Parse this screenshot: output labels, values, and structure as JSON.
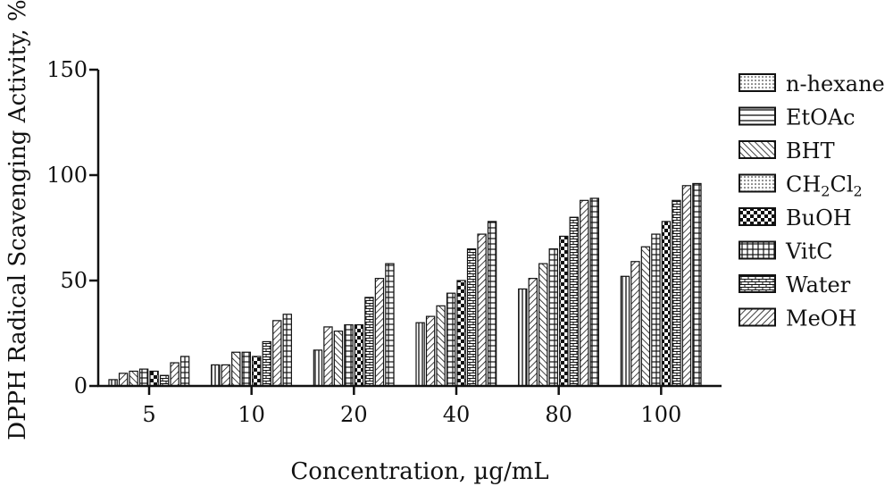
{
  "chart_data": {
    "type": "bar",
    "title": "",
    "xlabel": "Concentration, µg/mL",
    "ylabel": "DPPH Radical Scavenging Activity, %",
    "ylim": [
      0,
      150
    ],
    "yticks": [
      "0",
      "50",
      "100",
      "150"
    ],
    "categories": [
      "5",
      "10",
      "20",
      "40",
      "80",
      "100"
    ],
    "legend_position": "right",
    "grid": false,
    "series": [
      {
        "name": "",
        "pattern": "vlines",
        "values": [
          3,
          10,
          17,
          30,
          46,
          52
        ]
      },
      {
        "name": "",
        "pattern": "diag-right",
        "values": [
          6,
          10,
          28,
          33,
          51,
          59
        ]
      },
      {
        "name": "",
        "pattern": "diag-left",
        "values": [
          7,
          16,
          26,
          38,
          58,
          66
        ]
      },
      {
        "name": "",
        "pattern": "grid",
        "values": [
          8,
          16,
          29,
          44,
          65,
          72
        ]
      },
      {
        "name": "",
        "pattern": "check",
        "values": [
          7,
          14,
          29,
          50,
          71,
          78
        ]
      },
      {
        "name": "",
        "pattern": "brick",
        "values": [
          5,
          21,
          42,
          65,
          80,
          88
        ]
      },
      {
        "name": "",
        "pattern": "diag-right",
        "values": [
          11,
          31,
          51,
          72,
          88,
          95
        ]
      },
      {
        "name": "",
        "pattern": "grid",
        "values": [
          14,
          34,
          58,
          78,
          89,
          96
        ]
      }
    ],
    "legend": [
      {
        "label": "n-hexane",
        "pattern": "dots"
      },
      {
        "label": "EtOAc",
        "pattern": "hlines"
      },
      {
        "label": "BHT",
        "pattern": "diag-left"
      },
      {
        "label": "CH",
        "sub1": "2",
        "label2": "Cl",
        "sub2": "2",
        "pattern": "dots"
      },
      {
        "label": "BuOH",
        "pattern": "check"
      },
      {
        "label": "VitC",
        "pattern": "grid"
      },
      {
        "label": "Water",
        "pattern": "brick"
      },
      {
        "label": "MeOH",
        "pattern": "diag-right"
      }
    ]
  }
}
